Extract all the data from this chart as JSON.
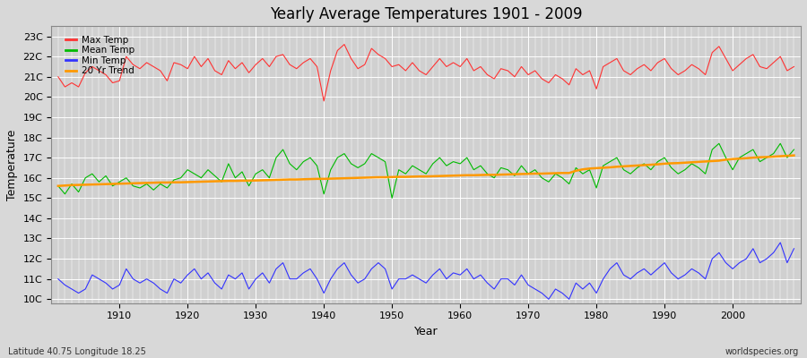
{
  "title": "Yearly Average Temperatures 1901 - 2009",
  "xlabel": "Year",
  "ylabel": "Temperature",
  "subtitle_left": "Latitude 40.75 Longitude 18.25",
  "subtitle_right": "worldspecies.org",
  "bg_color": "#d8d8d8",
  "plot_bg_color": "#d0d0d0",
  "years": [
    1901,
    1902,
    1903,
    1904,
    1905,
    1906,
    1907,
    1908,
    1909,
    1910,
    1911,
    1912,
    1913,
    1914,
    1915,
    1916,
    1917,
    1918,
    1919,
    1920,
    1921,
    1922,
    1923,
    1924,
    1925,
    1926,
    1927,
    1928,
    1929,
    1930,
    1931,
    1932,
    1933,
    1934,
    1935,
    1936,
    1937,
    1938,
    1939,
    1940,
    1941,
    1942,
    1943,
    1944,
    1945,
    1946,
    1947,
    1948,
    1949,
    1950,
    1951,
    1952,
    1953,
    1954,
    1955,
    1956,
    1957,
    1958,
    1959,
    1960,
    1961,
    1962,
    1963,
    1964,
    1965,
    1966,
    1967,
    1968,
    1969,
    1970,
    1971,
    1972,
    1973,
    1974,
    1975,
    1976,
    1977,
    1978,
    1979,
    1980,
    1981,
    1982,
    1983,
    1984,
    1985,
    1986,
    1987,
    1988,
    1989,
    1990,
    1991,
    1992,
    1993,
    1994,
    1995,
    1996,
    1997,
    1998,
    1999,
    2000,
    2001,
    2002,
    2003,
    2004,
    2005,
    2006,
    2007,
    2008,
    2009
  ],
  "max_temp": [
    21.0,
    20.5,
    20.7,
    20.5,
    21.2,
    21.5,
    21.3,
    21.1,
    20.7,
    20.8,
    22.0,
    21.6,
    21.4,
    21.7,
    21.5,
    21.3,
    20.8,
    21.7,
    21.6,
    21.4,
    22.0,
    21.5,
    21.9,
    21.3,
    21.1,
    21.8,
    21.4,
    21.7,
    21.2,
    21.6,
    21.9,
    21.5,
    22.0,
    22.1,
    21.6,
    21.4,
    21.7,
    21.9,
    21.5,
    19.8,
    21.3,
    22.3,
    22.6,
    21.9,
    21.4,
    21.6,
    22.4,
    22.1,
    21.9,
    21.5,
    21.6,
    21.3,
    21.7,
    21.3,
    21.1,
    21.5,
    21.9,
    21.5,
    21.7,
    21.5,
    21.9,
    21.3,
    21.5,
    21.1,
    20.9,
    21.4,
    21.3,
    21.0,
    21.5,
    21.1,
    21.3,
    20.9,
    20.7,
    21.1,
    20.9,
    20.6,
    21.4,
    21.1,
    21.3,
    20.4,
    21.5,
    21.7,
    21.9,
    21.3,
    21.1,
    21.4,
    21.6,
    21.3,
    21.7,
    21.9,
    21.4,
    21.1,
    21.3,
    21.6,
    21.4,
    21.1,
    22.2,
    22.5,
    21.9,
    21.3,
    21.6,
    21.9,
    22.1,
    21.5,
    21.4,
    21.7,
    22.0,
    21.3,
    21.5
  ],
  "mean_temp": [
    15.6,
    15.2,
    15.7,
    15.3,
    16.0,
    16.2,
    15.8,
    16.1,
    15.6,
    15.8,
    16.0,
    15.6,
    15.5,
    15.7,
    15.4,
    15.7,
    15.5,
    15.9,
    16.0,
    16.4,
    16.2,
    16.0,
    16.4,
    16.1,
    15.8,
    16.7,
    16.0,
    16.3,
    15.6,
    16.2,
    16.4,
    16.0,
    17.0,
    17.4,
    16.7,
    16.4,
    16.8,
    17.0,
    16.6,
    15.2,
    16.4,
    17.0,
    17.2,
    16.7,
    16.5,
    16.7,
    17.2,
    17.0,
    16.8,
    15.0,
    16.4,
    16.2,
    16.6,
    16.4,
    16.2,
    16.7,
    17.0,
    16.6,
    16.8,
    16.7,
    17.0,
    16.4,
    16.6,
    16.2,
    16.0,
    16.5,
    16.4,
    16.1,
    16.6,
    16.2,
    16.4,
    16.0,
    15.8,
    16.2,
    16.0,
    15.7,
    16.5,
    16.2,
    16.4,
    15.5,
    16.6,
    16.8,
    17.0,
    16.4,
    16.2,
    16.5,
    16.7,
    16.4,
    16.8,
    17.0,
    16.5,
    16.2,
    16.4,
    16.7,
    16.5,
    16.2,
    17.4,
    17.7,
    17.0,
    16.4,
    17.0,
    17.2,
    17.4,
    16.8,
    17.0,
    17.2,
    17.7,
    17.0,
    17.4
  ],
  "min_temp": [
    11.0,
    10.7,
    10.5,
    10.3,
    10.5,
    11.2,
    11.0,
    10.8,
    10.5,
    10.7,
    11.5,
    11.0,
    10.8,
    11.0,
    10.8,
    10.5,
    10.3,
    11.0,
    10.8,
    11.2,
    11.5,
    11.0,
    11.3,
    10.8,
    10.5,
    11.2,
    11.0,
    11.3,
    10.5,
    11.0,
    11.3,
    10.8,
    11.5,
    11.8,
    11.0,
    11.0,
    11.3,
    11.5,
    11.0,
    10.3,
    11.0,
    11.5,
    11.8,
    11.2,
    10.8,
    11.0,
    11.5,
    11.8,
    11.5,
    10.5,
    11.0,
    11.0,
    11.2,
    11.0,
    10.8,
    11.2,
    11.5,
    11.0,
    11.3,
    11.2,
    11.5,
    11.0,
    11.2,
    10.8,
    10.5,
    11.0,
    11.0,
    10.7,
    11.2,
    10.7,
    10.5,
    10.3,
    10.0,
    10.5,
    10.3,
    10.0,
    10.8,
    10.5,
    10.8,
    10.3,
    11.0,
    11.5,
    11.8,
    11.2,
    11.0,
    11.3,
    11.5,
    11.2,
    11.5,
    11.8,
    11.3,
    11.0,
    11.2,
    11.5,
    11.3,
    11.0,
    12.0,
    12.3,
    11.8,
    11.5,
    11.8,
    12.0,
    12.5,
    11.8,
    12.0,
    12.3,
    12.8,
    11.8,
    12.5
  ],
  "trend_vals": [
    15.6,
    15.62,
    15.64,
    15.65,
    15.66,
    15.67,
    15.68,
    15.69,
    15.7,
    15.71,
    15.72,
    15.73,
    15.74,
    15.75,
    15.76,
    15.77,
    15.77,
    15.78,
    15.78,
    15.79,
    15.8,
    15.81,
    15.82,
    15.83,
    15.84,
    15.85,
    15.85,
    15.86,
    15.86,
    15.87,
    15.88,
    15.89,
    15.9,
    15.91,
    15.92,
    15.92,
    15.93,
    15.94,
    15.95,
    15.95,
    15.96,
    15.97,
    15.98,
    15.99,
    16.0,
    16.01,
    16.02,
    16.03,
    16.03,
    16.04,
    16.05,
    16.05,
    16.06,
    16.07,
    16.07,
    16.08,
    16.09,
    16.1,
    16.11,
    16.12,
    16.13,
    16.13,
    16.14,
    16.15,
    16.15,
    16.16,
    16.17,
    16.18,
    16.19,
    16.2,
    16.21,
    16.21,
    16.22,
    16.23,
    16.24,
    16.24,
    16.35,
    16.42,
    16.46,
    16.48,
    16.5,
    16.52,
    16.55,
    16.57,
    16.59,
    16.61,
    16.63,
    16.65,
    16.67,
    16.7,
    16.72,
    16.73,
    16.75,
    16.77,
    16.79,
    16.81,
    16.83,
    16.85,
    16.9,
    16.93,
    16.95,
    16.97,
    17.0,
    17.02,
    17.03,
    17.05,
    17.07,
    17.09,
    17.11
  ],
  "max_color": "#ff3333",
  "mean_color": "#00bb00",
  "min_color": "#3333ff",
  "trend_color": "#ff9900",
  "yticks": [
    10,
    11,
    12,
    13,
    14,
    15,
    16,
    17,
    18,
    19,
    20,
    21,
    22,
    23
  ],
  "ytick_labels": [
    "10C",
    "11C",
    "12C",
    "13C",
    "14C",
    "15C",
    "16C",
    "17C",
    "18C",
    "19C",
    "20C",
    "21C",
    "22C",
    "23C"
  ],
  "ylim": [
    9.8,
    23.5
  ],
  "xlim": [
    1900,
    2010
  ],
  "xticks": [
    1910,
    1920,
    1930,
    1940,
    1950,
    1960,
    1970,
    1980,
    1990,
    2000
  ]
}
